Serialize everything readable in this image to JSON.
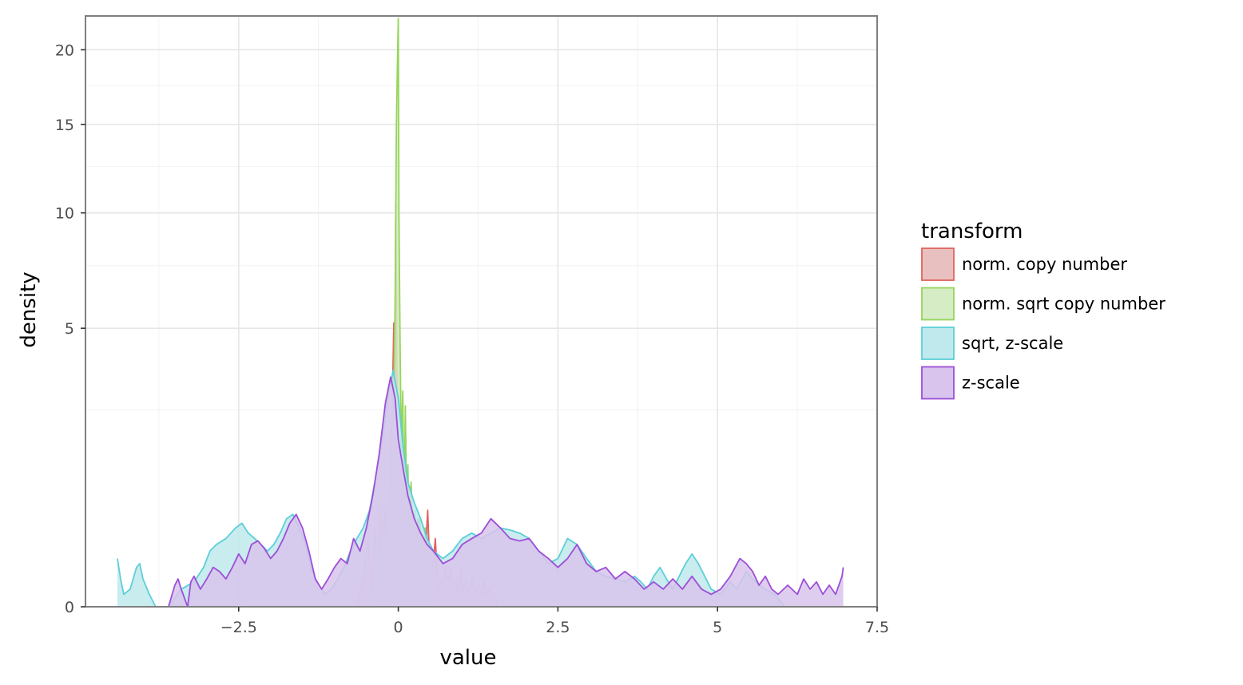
{
  "chart_data": {
    "type": "area",
    "title": "",
    "xlabel": "value",
    "ylabel": "density",
    "y_scale": "sqrt",
    "xlim": [
      -4.9,
      7.5
    ],
    "ylim": [
      0,
      22.5
    ],
    "x_ticks": [
      -2.5,
      0,
      2.5,
      5,
      7.5
    ],
    "x_tick_labels": [
      "−2.5",
      "0",
      "2.5",
      "5",
      "7.5"
    ],
    "y_ticks": [
      0,
      5,
      10,
      15,
      20
    ],
    "y_tick_labels": [
      "0",
      "5",
      "10",
      "15",
      "20"
    ],
    "grid": true,
    "legend": {
      "title": "transform",
      "position": "right",
      "entries": [
        "norm. copy number",
        "norm. sqrt copy number",
        "sqrt, z-scale",
        "z-scale"
      ]
    },
    "series": [
      {
        "name": "norm. copy number",
        "color": "#e0625e",
        "fill": "#e8c0bf",
        "x": [
          -0.65,
          -0.55,
          -0.47,
          -0.42,
          -0.36,
          -0.32,
          -0.28,
          -0.24,
          -0.2,
          -0.16,
          -0.12,
          -0.09,
          -0.07,
          -0.05,
          -0.04,
          -0.02,
          0.0,
          0.02,
          0.04,
          0.07,
          0.1,
          0.13,
          0.16,
          0.19,
          0.22,
          0.25,
          0.28,
          0.31,
          0.34,
          0.38,
          0.42,
          0.46,
          0.5,
          0.54,
          0.58,
          0.62,
          0.66,
          0.7,
          0.74,
          0.78,
          0.82,
          0.86,
          0.9,
          0.94,
          0.98,
          1.02,
          1.06,
          1.1,
          1.15,
          1.2,
          1.25,
          1.3,
          1.34,
          1.38,
          1.42,
          1.46,
          1.5,
          1.55
        ],
        "y": [
          0,
          0.05,
          0.3,
          0.02,
          0.4,
          0.05,
          0.6,
          0.1,
          0.7,
          0.2,
          1.2,
          3.0,
          5.2,
          2.5,
          10.5,
          3.5,
          1.5,
          0.9,
          1.8,
          0.4,
          0.6,
          0.2,
          0.9,
          0.3,
          0.6,
          0.5,
          0.2,
          0.5,
          0.4,
          0.3,
          0.15,
          0.6,
          0.05,
          0.1,
          0.3,
          0.02,
          0.05,
          0.02,
          0.1,
          0.03,
          0.1,
          0.02,
          0.05,
          0.01,
          0.1,
          0.01,
          0.05,
          0.01,
          0.05,
          0.01,
          0.03,
          0.01,
          0.04,
          0.01,
          0.02,
          0.01,
          0.01,
          0
        ]
      },
      {
        "name": "norm. sqrt copy number",
        "color": "#95d55c",
        "fill": "#d5ecc4",
        "x": [
          -0.4,
          -0.33,
          -0.28,
          -0.24,
          -0.2,
          -0.16,
          -0.12,
          -0.08,
          -0.05,
          -0.03,
          -0.01,
          0.0,
          0.01,
          0.03,
          0.05,
          0.07,
          0.09,
          0.11,
          0.13,
          0.15,
          0.17,
          0.2,
          0.23,
          0.26,
          0.3,
          0.34,
          0.38,
          0.42,
          0.46,
          0.5,
          0.55,
          0.6
        ],
        "y": [
          0,
          0.3,
          0.05,
          0.5,
          0.1,
          0.7,
          0.4,
          2.0,
          6.0,
          15.0,
          20.0,
          22.3,
          10.0,
          4.0,
          1.5,
          3.0,
          0.5,
          2.6,
          0.6,
          1.3,
          0.3,
          1.0,
          0.3,
          0.6,
          0.2,
          0.5,
          0.1,
          0.4,
          0.05,
          0.2,
          0.02,
          0
        ]
      },
      {
        "name": "sqrt, z-scale",
        "color": "#5ccfd8",
        "fill": "#bfe9ec",
        "x": [
          -4.4,
          -4.35,
          -4.3,
          -4.2,
          -4.1,
          -4.05,
          -4.0,
          -3.9,
          -3.8,
          -3.6,
          -3.4,
          -3.2,
          -3.05,
          -2.95,
          -2.85,
          -2.7,
          -2.55,
          -2.45,
          -2.35,
          -2.25,
          -2.15,
          -2.05,
          -1.95,
          -1.85,
          -1.75,
          -1.65,
          -1.55,
          -1.45,
          -1.35,
          -1.25,
          -1.15,
          -1.05,
          -0.95,
          -0.85,
          -0.75,
          -0.65,
          -0.55,
          -0.45,
          -0.35,
          -0.25,
          -0.15,
          -0.08,
          0.0,
          0.08,
          0.15,
          0.25,
          0.35,
          0.45,
          0.55,
          0.7,
          0.85,
          1.0,
          1.15,
          1.3,
          1.45,
          1.6,
          1.75,
          1.9,
          2.05,
          2.2,
          2.35,
          2.5,
          2.65,
          2.8,
          2.95,
          3.1,
          3.25,
          3.4,
          3.55,
          3.7,
          3.8,
          3.9,
          4.0,
          4.1,
          4.2,
          4.3,
          4.4,
          4.5,
          4.6,
          4.7,
          4.8,
          4.9,
          5.05,
          5.2,
          5.3,
          5.45,
          5.55,
          5.65,
          5.75,
          5.9,
          6.05
        ],
        "y": [
          0.15,
          0.05,
          0.01,
          0.02,
          0.1,
          0.12,
          0.05,
          0.01,
          0.0,
          0.0,
          0.02,
          0.04,
          0.1,
          0.2,
          0.25,
          0.3,
          0.4,
          0.45,
          0.35,
          0.3,
          0.25,
          0.2,
          0.25,
          0.35,
          0.5,
          0.55,
          0.4,
          0.25,
          0.08,
          0.03,
          0.01,
          0.02,
          0.05,
          0.1,
          0.2,
          0.3,
          0.4,
          0.6,
          1.1,
          1.8,
          3.0,
          3.6,
          2.8,
          1.6,
          1.0,
          0.7,
          0.5,
          0.3,
          0.2,
          0.15,
          0.2,
          0.3,
          0.35,
          0.3,
          0.35,
          0.4,
          0.38,
          0.35,
          0.3,
          0.2,
          0.12,
          0.15,
          0.3,
          0.25,
          0.15,
          0.08,
          0.06,
          0.05,
          0.04,
          0.06,
          0.04,
          0.02,
          0.06,
          0.1,
          0.05,
          0.02,
          0.06,
          0.12,
          0.18,
          0.12,
          0.06,
          0.02,
          0.01,
          0.04,
          0.02,
          0.08,
          0.05,
          0.03,
          0.02,
          0.01,
          0
        ]
      },
      {
        "name": "z-scale",
        "color": "#9d4ed8",
        "fill": "#d8c4ec",
        "x": [
          -3.6,
          -3.5,
          -3.45,
          -3.4,
          -3.3,
          -3.25,
          -3.2,
          -3.1,
          -3.0,
          -2.9,
          -2.8,
          -2.7,
          -2.6,
          -2.5,
          -2.4,
          -2.3,
          -2.2,
          -2.1,
          -2.0,
          -1.9,
          -1.8,
          -1.7,
          -1.6,
          -1.5,
          -1.4,
          -1.3,
          -1.2,
          -1.1,
          -1.0,
          -0.9,
          -0.8,
          -0.7,
          -0.6,
          -0.5,
          -0.4,
          -0.3,
          -0.2,
          -0.12,
          -0.05,
          0.0,
          0.08,
          0.15,
          0.25,
          0.35,
          0.45,
          0.55,
          0.7,
          0.85,
          1.0,
          1.15,
          1.3,
          1.45,
          1.6,
          1.75,
          1.9,
          2.05,
          2.2,
          2.35,
          2.5,
          2.65,
          2.8,
          2.95,
          3.1,
          3.25,
          3.4,
          3.55,
          3.7,
          3.85,
          4.0,
          4.15,
          4.3,
          4.45,
          4.6,
          4.75,
          4.9,
          5.05,
          5.2,
          5.35,
          5.45,
          5.55,
          5.65,
          5.75,
          5.85,
          5.95,
          6.1,
          6.25,
          6.35,
          6.45,
          6.55,
          6.65,
          6.75,
          6.85,
          6.95,
          6.97
        ],
        "y": [
          0.0,
          0.03,
          0.05,
          0.02,
          0.0,
          0.04,
          0.06,
          0.02,
          0.05,
          0.1,
          0.08,
          0.05,
          0.1,
          0.18,
          0.12,
          0.25,
          0.28,
          0.22,
          0.15,
          0.2,
          0.3,
          0.45,
          0.55,
          0.4,
          0.2,
          0.05,
          0.02,
          0.05,
          0.1,
          0.15,
          0.12,
          0.3,
          0.2,
          0.4,
          0.8,
          1.5,
          2.7,
          3.4,
          2.8,
          1.8,
          1.2,
          0.8,
          0.5,
          0.35,
          0.25,
          0.2,
          0.12,
          0.15,
          0.25,
          0.3,
          0.35,
          0.5,
          0.4,
          0.3,
          0.28,
          0.3,
          0.2,
          0.15,
          0.1,
          0.15,
          0.25,
          0.12,
          0.08,
          0.1,
          0.05,
          0.08,
          0.05,
          0.02,
          0.04,
          0.02,
          0.05,
          0.02,
          0.06,
          0.02,
          0.01,
          0.02,
          0.06,
          0.15,
          0.12,
          0.08,
          0.03,
          0.06,
          0.02,
          0.01,
          0.03,
          0.01,
          0.05,
          0.02,
          0.04,
          0.01,
          0.03,
          0.01,
          0.06,
          0.1
        ]
      }
    ]
  }
}
